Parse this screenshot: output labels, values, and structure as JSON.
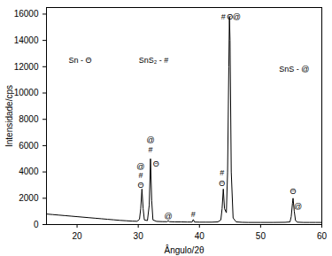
{
  "chart_data": {
    "type": "line",
    "x_label": "Ângulo/2θ",
    "y_label": "Intensidade/cps",
    "xlim": [
      15,
      60
    ],
    "xticks": [
      20,
      30,
      40,
      50,
      60
    ],
    "ylim": [
      0,
      16500
    ],
    "yticks": [
      0,
      2000,
      4000,
      6000,
      8000,
      10000,
      12000,
      14000,
      16000
    ],
    "grid": false,
    "color": "#000000",
    "x": [
      15,
      16,
      17,
      18,
      19,
      20,
      21,
      22,
      23,
      24,
      25,
      26,
      27,
      28,
      29,
      29.8,
      30.2,
      30.4,
      30.6,
      30.8,
      31.0,
      31.5,
      31.8,
      32.0,
      32.2,
      32.4,
      33,
      34,
      34.7,
      34.9,
      35.1,
      36,
      37,
      38,
      38.8,
      39.0,
      39.2,
      40,
      41,
      42,
      43,
      43.5,
      43.7,
      43.9,
      44.1,
      44.4,
      44.6,
      44.8,
      44.9,
      45.0,
      45.2,
      45.5,
      46,
      47,
      48,
      50,
      52,
      54,
      54.8,
      55.0,
      55.2,
      55.3,
      55.5,
      55.7,
      56,
      57,
      58,
      59,
      60
    ],
    "values": [
      800,
      760,
      720,
      680,
      640,
      600,
      560,
      520,
      480,
      440,
      400,
      360,
      320,
      290,
      260,
      250,
      400,
      1200,
      2700,
      1200,
      350,
      300,
      1500,
      5000,
      1800,
      350,
      240,
      220,
      220,
      300,
      220,
      200,
      200,
      190,
      190,
      380,
      190,
      180,
      180,
      180,
      200,
      350,
      1200,
      2700,
      1200,
      900,
      4000,
      12000,
      15800,
      14000,
      4000,
      500,
      200,
      170,
      160,
      160,
      160,
      170,
      200,
      600,
      1600,
      2000,
      1000,
      300,
      180,
      160,
      160,
      160,
      160
    ],
    "annotations": [
      {
        "x": 30.4,
        "y": 3000,
        "text": "Θ"
      },
      {
        "x": 30.4,
        "y": 3700,
        "text": "#"
      },
      {
        "x": 30.4,
        "y": 4400,
        "text": "@"
      },
      {
        "x": 32.9,
        "y": 4600,
        "text": "Θ"
      },
      {
        "x": 32.0,
        "y": 5700,
        "text": "#"
      },
      {
        "x": 32.0,
        "y": 6400,
        "text": "@"
      },
      {
        "x": 34.9,
        "y": 650,
        "text": "@"
      },
      {
        "x": 39.0,
        "y": 750,
        "text": "#"
      },
      {
        "x": 43.7,
        "y": 3100,
        "text": "Θ"
      },
      {
        "x": 43.7,
        "y": 3900,
        "text": "#"
      },
      {
        "x": 43.9,
        "y": 15800,
        "text": "#"
      },
      {
        "x": 45.0,
        "y": 15800,
        "text": "Θ"
      },
      {
        "x": 46.1,
        "y": 15800,
        "text": "@"
      },
      {
        "x": 55.3,
        "y": 2500,
        "text": "Θ"
      },
      {
        "x": 56.1,
        "y": 1400,
        "text": "@"
      },
      {
        "x": 20.5,
        "y": 12500,
        "text": "Sn - Θ"
      },
      {
        "x": 32.5,
        "y": 12500,
        "text": "SnS₂ - #"
      },
      {
        "x": 55.5,
        "y": 11800,
        "text": "SnS - @"
      }
    ]
  }
}
